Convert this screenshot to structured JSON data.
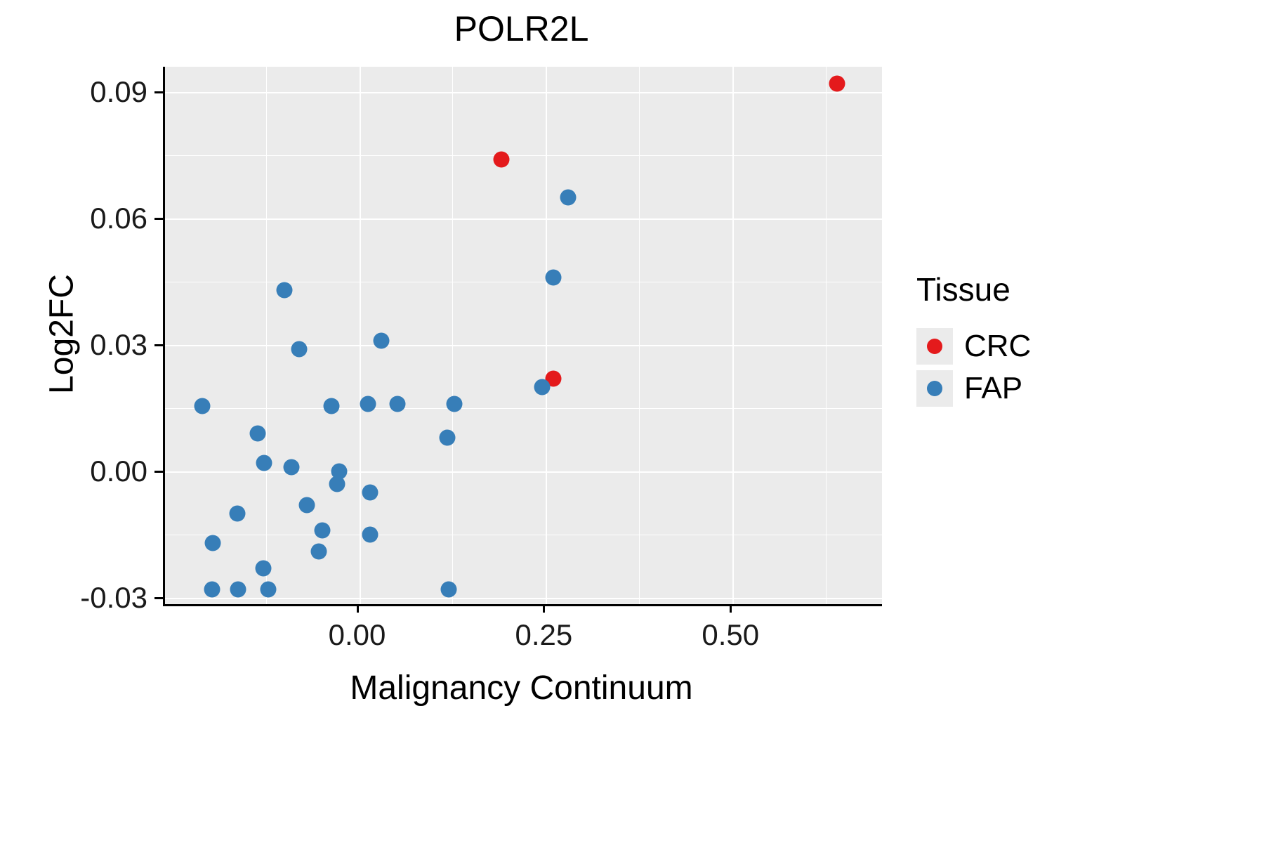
{
  "chart_data": {
    "type": "scatter",
    "title": "POLR2L",
    "xlabel": "Malignancy Continuum",
    "ylabel": "Log2FC",
    "xlim": [
      -0.26,
      0.7
    ],
    "ylim": [
      -0.0315,
      0.096
    ],
    "grid": true,
    "x_ticks": [
      0.0,
      0.25,
      0.5
    ],
    "x_tick_labels": [
      "0.00",
      "0.25",
      "0.50"
    ],
    "y_ticks": [
      -0.03,
      0.0,
      0.03,
      0.06,
      0.09
    ],
    "y_tick_labels": [
      "-0.03",
      "0.00",
      "0.03",
      "0.06",
      "0.09"
    ],
    "x_minor_ticks": [
      -0.125,
      0.125,
      0.375,
      0.625
    ],
    "y_minor_ticks": [
      -0.015,
      0.015,
      0.045,
      0.075
    ],
    "legend": {
      "title": "Tissue",
      "position": "right"
    },
    "series": [
      {
        "name": "CRC",
        "color": "#E41A1C",
        "points": [
          [
            0.64,
            0.092
          ],
          [
            0.19,
            0.074
          ],
          [
            0.26,
            0.022
          ]
        ]
      },
      {
        "name": "FAP",
        "color": "#377EB8",
        "points": [
          [
            0.28,
            0.065
          ],
          [
            0.26,
            0.046
          ],
          [
            -0.1,
            0.043
          ],
          [
            0.03,
            0.031
          ],
          [
            -0.08,
            0.029
          ],
          [
            0.245,
            0.02
          ],
          [
            -0.21,
            0.0155
          ],
          [
            -0.037,
            0.0155
          ],
          [
            0.012,
            0.016
          ],
          [
            0.051,
            0.016
          ],
          [
            0.127,
            0.016
          ],
          [
            -0.136,
            0.009
          ],
          [
            0.118,
            0.008
          ],
          [
            -0.127,
            0.002
          ],
          [
            -0.091,
            0.001
          ],
          [
            -0.027,
            0.0
          ],
          [
            -0.03,
            -0.003
          ],
          [
            0.015,
            -0.005
          ],
          [
            -0.07,
            -0.008
          ],
          [
            -0.163,
            -0.01
          ],
          [
            -0.049,
            -0.014
          ],
          [
            0.015,
            -0.015
          ],
          [
            -0.196,
            -0.017
          ],
          [
            -0.054,
            -0.019
          ],
          [
            -0.128,
            -0.023
          ],
          [
            -0.197,
            -0.028
          ],
          [
            -0.162,
            -0.028
          ],
          [
            -0.122,
            -0.028
          ],
          [
            0.12,
            -0.028
          ]
        ]
      }
    ]
  }
}
